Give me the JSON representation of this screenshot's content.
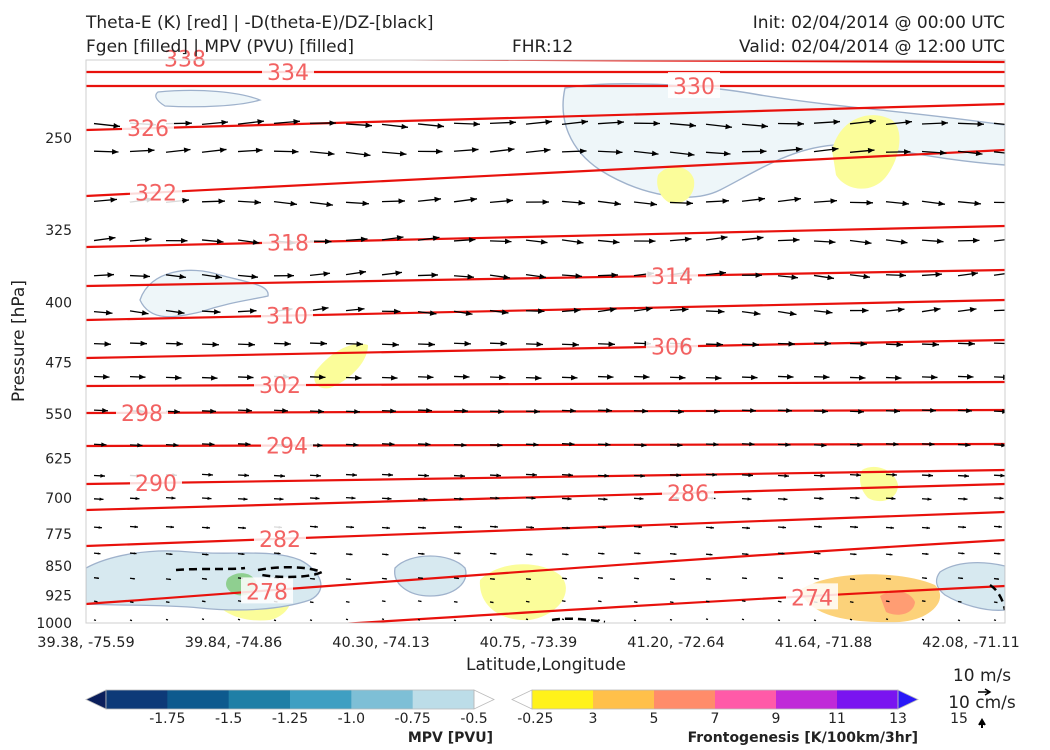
{
  "header": {
    "line1_left": "Theta-E (K) [red] | -D(theta-E)/DZ-[black]",
    "line2_left": "Fgen [filled] | MPV (PVU) [filled]",
    "fhr": "FHR:12",
    "init": "Init: 02/04/2014 @ 00:00 UTC",
    "valid": "Valid: 02/04/2014 @ 12:00 UTC"
  },
  "chart_data": {
    "type": "cross-section",
    "xlabel": "Latitude,Longitude",
    "ylabel": "Pressure [hPa]",
    "x_ticks": [
      "39.38, -75.59",
      "39.84, -74.86",
      "40.30, -74.13",
      "40.75, -73.39",
      "41.20, -72.64",
      "41.64, -71.88",
      "42.08, -71.11"
    ],
    "y_ticks": [
      250,
      325,
      400,
      475,
      550,
      625,
      700,
      775,
      850,
      925,
      1000
    ],
    "ylim": [
      1000,
      200
    ],
    "y_scale": "log-pressure",
    "theta_e_contours": [
      {
        "label": "338",
        "left": 338,
        "right": 338
      },
      {
        "label": "334",
        "left": 334,
        "right": 334
      },
      {
        "label": "330",
        "left": 330,
        "right": 330
      },
      {
        "label": "326",
        "left": 326,
        "right": 326
      },
      {
        "label": "322",
        "left": 322,
        "right": 322
      },
      {
        "label": "318",
        "left": 318,
        "right": 318
      },
      {
        "label": "314",
        "left": 314,
        "right": 314
      },
      {
        "label": "310",
        "left": 310,
        "right": 310
      },
      {
        "label": "306",
        "left": 306,
        "right": 306
      },
      {
        "label": "302",
        "left": 302,
        "right": 302
      },
      {
        "label": "298",
        "left": 298,
        "right": 298
      },
      {
        "label": "294",
        "left": 294,
        "right": 294
      },
      {
        "label": "290",
        "left": 290,
        "right": 290
      },
      {
        "label": "286",
        "left": 286,
        "right": 286
      },
      {
        "label": "282",
        "left": 282,
        "right": 282
      },
      {
        "label": "278",
        "left": 278,
        "right": 278
      },
      {
        "label": "274",
        "left": 274,
        "right": 274
      }
    ],
    "wind_key": {
      "horizontal": "10 m/s",
      "vertical": "10 cm/s"
    },
    "mpv_colorbar": {
      "title": "MPV [PVU]",
      "ticks": [
        "-1.75",
        "-1.5",
        "-1.25",
        "-1.0",
        "-0.75",
        "-0.5",
        "-0.25"
      ],
      "colors": [
        "#0b1f5c",
        "#0d3a78",
        "#0e5a8e",
        "#1f7fa6",
        "#3f9fc2",
        "#7ebfd6",
        "#bcdde8",
        "#ffffff"
      ]
    },
    "fgen_colorbar": {
      "title": "Frontogenesis [K/100km/3hr]",
      "ticks": [
        "3",
        "5",
        "7",
        "9",
        "11",
        "13",
        "15"
      ],
      "colors": [
        "#ffffff",
        "#fff21a",
        "#ffc04a",
        "#ff8c6a",
        "#ff5aa8",
        "#c02ad8",
        "#7a14f0",
        "#2a18f8"
      ]
    }
  }
}
